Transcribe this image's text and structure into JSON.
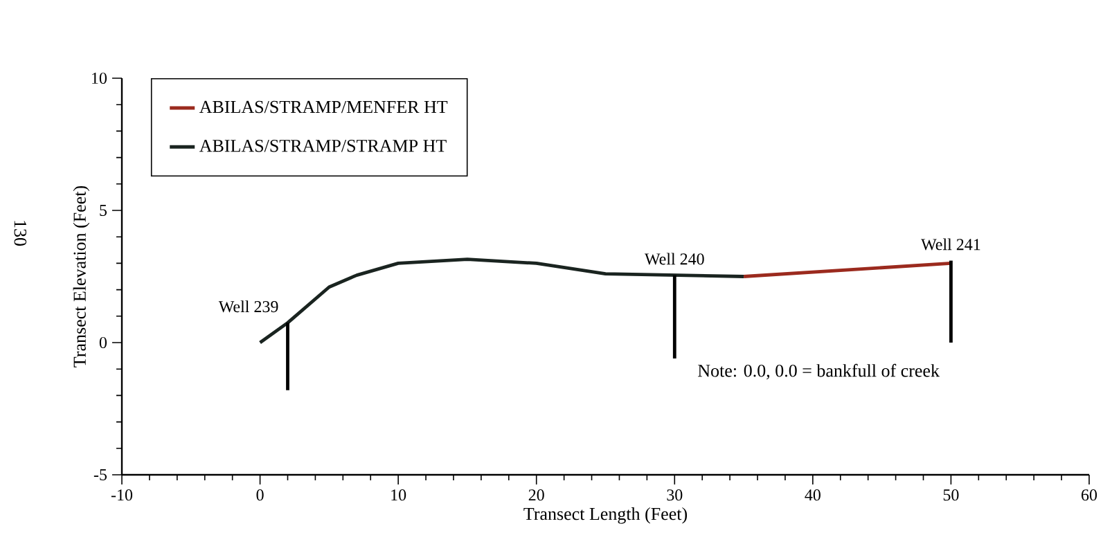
{
  "chart_data": {
    "type": "line",
    "xlabel": "Transect Length (Feet)",
    "ylabel": "Transect Elevation (Feet)",
    "xlim": [
      -10,
      60
    ],
    "xticks": [
      -10,
      0,
      10,
      20,
      30,
      40,
      50,
      60
    ],
    "ylim": [
      -5,
      10
    ],
    "yticks": [
      -5,
      0,
      5,
      10
    ],
    "legend": "top left",
    "grid": false,
    "line_style": "solid",
    "series": [
      {
        "name": "ABILAS/STRAMP/MENFER HT",
        "color": "#9b2a1e",
        "x": [
          35,
          50
        ],
        "values": [
          2.5,
          3.0
        ]
      },
      {
        "name": "ABILAS/STRAMP/STRAMP HT",
        "color": "#1a2420",
        "x": [
          0,
          2,
          5,
          7,
          10,
          15,
          20,
          25,
          30,
          35
        ],
        "values": [
          0,
          0.75,
          2.1,
          2.55,
          3.0,
          3.15,
          3.0,
          2.6,
          2.55,
          2.5
        ]
      },
      {
        "name": "Well 239",
        "color": "#000000",
        "x": [
          2,
          2
        ],
        "values": [
          0.75,
          -1.8
        ]
      },
      {
        "name": "Well 240",
        "color": "#000000",
        "x": [
          30,
          30
        ],
        "values": [
          2.55,
          -0.6
        ]
      },
      {
        "name": "Well 241",
        "color": "#000000",
        "x": [
          50,
          50
        ],
        "values": [
          3.1,
          0
        ]
      }
    ],
    "annotations": [
      "Note: 0.0, 0.0 = bankfull of creek",
      "130"
    ]
  }
}
